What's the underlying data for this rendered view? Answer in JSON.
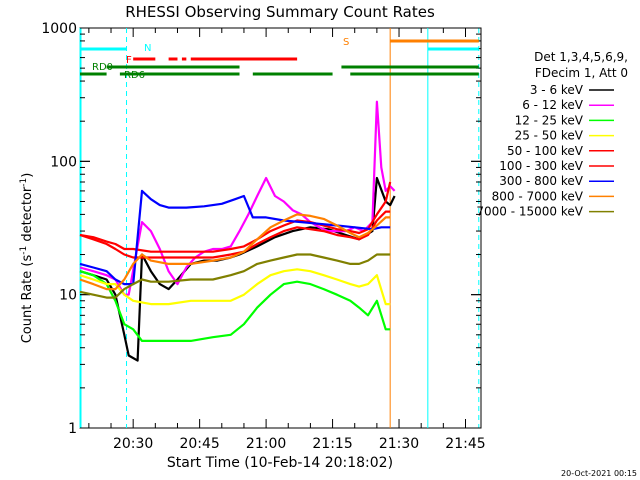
{
  "chart_data": {
    "type": "line",
    "title": "RHESSI Observing Summary Count Rates",
    "xlabel": "Start Time (10-Feb-14 20:18:02)",
    "ylabel": "Count Rate (s",
    "ylabel_sup1": "-1",
    "ylabel_mid": " detector",
    "ylabel_sup2": "-1",
    "ylabel_end": ")",
    "x_units": "minutes after 20:18:02",
    "xlim": [
      0,
      90.5
    ],
    "ylim": [
      1,
      1000
    ],
    "yscale": "log",
    "x_ticks": [
      {
        "x": 12,
        "label": "20:30"
      },
      {
        "x": 27,
        "label": "20:45"
      },
      {
        "x": 42,
        "label": "21:00"
      },
      {
        "x": 57,
        "label": "21:15"
      },
      {
        "x": 72,
        "label": "21:30"
      },
      {
        "x": 87,
        "label": "21:45"
      }
    ],
    "y_ticks": [
      {
        "y": 1,
        "label": "1"
      },
      {
        "y": 10,
        "label": "10"
      },
      {
        "y": 100,
        "label": "100"
      },
      {
        "y": 1000,
        "label": "1000"
      }
    ],
    "legend": {
      "placement": "right",
      "header": [
        "Det 1,3,4,5,6,9,",
        "FDecim 1, Att 0"
      ]
    },
    "series": [
      {
        "name": "3 - 6 keV",
        "color": "#000000",
        "points": [
          [
            0,
            15
          ],
          [
            3,
            14
          ],
          [
            6,
            13
          ],
          [
            8,
            10
          ],
          [
            10,
            5
          ],
          [
            11,
            3.5
          ],
          [
            13,
            3.2
          ],
          [
            14,
            20
          ],
          [
            16,
            15
          ],
          [
            18,
            12
          ],
          [
            20,
            11
          ],
          [
            22,
            13
          ],
          [
            25,
            17
          ],
          [
            28,
            18
          ],
          [
            31,
            18
          ],
          [
            34,
            19
          ],
          [
            36,
            20
          ],
          [
            40,
            23
          ],
          [
            44,
            27
          ],
          [
            48,
            30
          ],
          [
            52,
            32
          ],
          [
            56,
            31
          ],
          [
            60,
            28
          ],
          [
            63,
            26
          ],
          [
            66,
            30
          ],
          [
            67,
            75
          ],
          [
            69,
            50
          ],
          [
            70,
            47
          ],
          [
            71,
            55
          ]
        ]
      },
      {
        "name": "6 - 12 keV",
        "color": "#ff00ff",
        "points": [
          [
            0,
            16
          ],
          [
            3,
            15
          ],
          [
            6,
            14
          ],
          [
            8,
            13
          ],
          [
            10,
            10
          ],
          [
            11,
            10
          ],
          [
            14,
            35
          ],
          [
            16,
            30
          ],
          [
            18,
            22
          ],
          [
            20,
            15
          ],
          [
            22,
            12
          ],
          [
            24,
            16
          ],
          [
            26,
            19
          ],
          [
            28,
            21
          ],
          [
            30,
            22
          ],
          [
            32,
            22
          ],
          [
            34,
            23
          ],
          [
            36,
            30
          ],
          [
            38,
            40
          ],
          [
            40,
            55
          ],
          [
            42,
            75
          ],
          [
            44,
            55
          ],
          [
            46,
            50
          ],
          [
            48,
            43
          ],
          [
            50,
            40
          ],
          [
            52,
            35
          ],
          [
            54,
            32
          ],
          [
            56,
            30
          ],
          [
            58,
            30
          ],
          [
            60,
            30
          ],
          [
            62,
            32
          ],
          [
            64,
            30
          ],
          [
            66,
            35
          ],
          [
            67,
            280
          ],
          [
            68,
            90
          ],
          [
            69,
            60
          ],
          [
            70,
            65
          ],
          [
            71,
            60
          ]
        ]
      },
      {
        "name": "12 - 25 keV",
        "color": "#00ff00",
        "points": [
          [
            0,
            15
          ],
          [
            3,
            14
          ],
          [
            6,
            12
          ],
          [
            8,
            9
          ],
          [
            10,
            6
          ],
          [
            12,
            5.5
          ],
          [
            14,
            4.5
          ],
          [
            16,
            4.5
          ],
          [
            20,
            4.5
          ],
          [
            25,
            4.5
          ],
          [
            30,
            4.8
          ],
          [
            34,
            5
          ],
          [
            37,
            6
          ],
          [
            40,
            8
          ],
          [
            43,
            10
          ],
          [
            46,
            12
          ],
          [
            49,
            12.5
          ],
          [
            52,
            12
          ],
          [
            55,
            11
          ],
          [
            58,
            10
          ],
          [
            61,
            9
          ],
          [
            63,
            8
          ],
          [
            65,
            7
          ],
          [
            67,
            9
          ],
          [
            69,
            5.5
          ],
          [
            70,
            5.5
          ]
        ]
      },
      {
        "name": "25 - 50 keV",
        "color": "#ffff00",
        "points": [
          [
            0,
            14
          ],
          [
            3,
            13
          ],
          [
            6,
            12
          ],
          [
            8,
            12
          ],
          [
            10,
            10
          ],
          [
            12,
            9
          ],
          [
            16,
            8.5
          ],
          [
            20,
            8.5
          ],
          [
            25,
            9
          ],
          [
            30,
            9
          ],
          [
            34,
            9
          ],
          [
            37,
            10
          ],
          [
            40,
            12
          ],
          [
            43,
            14
          ],
          [
            46,
            15
          ],
          [
            49,
            15.5
          ],
          [
            52,
            15
          ],
          [
            55,
            14
          ],
          [
            58,
            13
          ],
          [
            61,
            12
          ],
          [
            63,
            11.5
          ],
          [
            65,
            12
          ],
          [
            67,
            14
          ],
          [
            69,
            8.5
          ],
          [
            70,
            8.5
          ]
        ]
      },
      {
        "name": "50 - 100 keV",
        "color": "#ff0000",
        "points": [
          [
            0,
            28
          ],
          [
            3,
            26
          ],
          [
            6,
            24
          ],
          [
            8,
            22
          ],
          [
            10,
            20
          ],
          [
            12,
            19
          ],
          [
            16,
            19
          ],
          [
            20,
            19
          ],
          [
            25,
            19
          ],
          [
            30,
            19
          ],
          [
            34,
            20
          ],
          [
            37,
            21
          ],
          [
            40,
            24
          ],
          [
            43,
            27
          ],
          [
            46,
            30
          ],
          [
            49,
            32
          ],
          [
            52,
            31
          ],
          [
            55,
            30
          ],
          [
            58,
            28
          ],
          [
            61,
            27
          ],
          [
            63,
            26
          ],
          [
            65,
            28
          ],
          [
            67,
            36
          ],
          [
            69,
            42
          ],
          [
            70,
            42
          ]
        ]
      },
      {
        "name": "100 - 300 keV",
        "color": "#ff0000",
        "points": [
          [
            0,
            28
          ],
          [
            3,
            27
          ],
          [
            6,
            25
          ],
          [
            8,
            24
          ],
          [
            10,
            22
          ],
          [
            12,
            22
          ],
          [
            16,
            21
          ],
          [
            20,
            21
          ],
          [
            25,
            21
          ],
          [
            30,
            21
          ],
          [
            34,
            22
          ],
          [
            37,
            23
          ],
          [
            40,
            26
          ],
          [
            43,
            30
          ],
          [
            46,
            33
          ],
          [
            49,
            36
          ],
          [
            52,
            35
          ],
          [
            55,
            33
          ],
          [
            58,
            31
          ],
          [
            61,
            30
          ],
          [
            63,
            29
          ],
          [
            65,
            31
          ],
          [
            67,
            40
          ],
          [
            69,
            50
          ],
          [
            70,
            70
          ]
        ]
      },
      {
        "name": "300 - 800 keV",
        "color": "#0000ff",
        "points": [
          [
            0,
            17
          ],
          [
            3,
            16
          ],
          [
            6,
            15
          ],
          [
            8,
            13
          ],
          [
            10,
            12
          ],
          [
            12,
            12
          ],
          [
            14,
            60
          ],
          [
            16,
            52
          ],
          [
            18,
            47
          ],
          [
            20,
            45
          ],
          [
            24,
            45
          ],
          [
            28,
            46
          ],
          [
            32,
            48
          ],
          [
            35,
            52
          ],
          [
            37,
            55
          ],
          [
            39,
            38
          ],
          [
            42,
            38
          ],
          [
            46,
            36
          ],
          [
            50,
            35
          ],
          [
            54,
            34
          ],
          [
            58,
            33
          ],
          [
            62,
            32
          ],
          [
            66,
            31
          ],
          [
            68,
            32
          ],
          [
            70,
            32
          ]
        ]
      },
      {
        "name": "800 - 7000 keV",
        "color": "#ff8000",
        "points": [
          [
            0,
            13
          ],
          [
            3,
            12
          ],
          [
            6,
            11
          ],
          [
            8,
            11
          ],
          [
            10,
            13
          ],
          [
            12,
            17
          ],
          [
            14,
            20
          ],
          [
            16,
            18
          ],
          [
            20,
            17
          ],
          [
            25,
            17
          ],
          [
            30,
            18
          ],
          [
            34,
            19
          ],
          [
            37,
            21
          ],
          [
            40,
            26
          ],
          [
            43,
            32
          ],
          [
            46,
            36
          ],
          [
            49,
            40
          ],
          [
            52,
            39
          ],
          [
            55,
            37
          ],
          [
            58,
            33
          ],
          [
            61,
            29
          ],
          [
            63,
            27
          ],
          [
            65,
            29
          ],
          [
            67,
            33
          ],
          [
            69,
            38
          ],
          [
            70,
            38
          ]
        ]
      },
      {
        "name": "7000 - 15000 keV",
        "color": "#808000",
        "points": [
          [
            0,
            10.5
          ],
          [
            3,
            10
          ],
          [
            6,
            9.5
          ],
          [
            8,
            9.5
          ],
          [
            10,
            11
          ],
          [
            12,
            12
          ],
          [
            14,
            13
          ],
          [
            16,
            12.5
          ],
          [
            20,
            12.5
          ],
          [
            25,
            13
          ],
          [
            30,
            13
          ],
          [
            34,
            14
          ],
          [
            37,
            15
          ],
          [
            40,
            17
          ],
          [
            43,
            18
          ],
          [
            46,
            19
          ],
          [
            49,
            20
          ],
          [
            52,
            20
          ],
          [
            55,
            19
          ],
          [
            58,
            18
          ],
          [
            61,
            17
          ],
          [
            63,
            17
          ],
          [
            65,
            18
          ],
          [
            67,
            20
          ],
          [
            69,
            20
          ],
          [
            70,
            20
          ]
        ]
      }
    ],
    "time_bars": [
      {
        "label": "N",
        "color": "#00ffff",
        "ranges": [
          [
            0,
            10.5
          ],
          [
            78.5,
            90
          ]
        ],
        "level": "high"
      },
      {
        "label": "S",
        "color": "#ff8000",
        "ranges": [
          [
            70,
            90
          ]
        ],
        "level": "top"
      },
      {
        "label": "F",
        "color": "#ff0000",
        "ranges": [
          [
            12,
            17
          ],
          [
            20,
            22
          ],
          [
            23,
            24
          ],
          [
            25,
            49
          ]
        ],
        "level": "mid"
      },
      {
        "label": "RD0",
        "color": "#008000",
        "ranges": [
          [
            6,
            36
          ],
          [
            59,
            90
          ]
        ],
        "level": "low"
      },
      {
        "label": "RD6",
        "color": "#008000",
        "ranges": [
          [
            0,
            6
          ],
          [
            9,
            36
          ],
          [
            39,
            57
          ],
          [
            61,
            90
          ]
        ],
        "level": "lower"
      }
    ],
    "vlines": [
      {
        "x": 10.5,
        "color": "#00ffff",
        "style": "dashed"
      },
      {
        "x": 70,
        "color": "#ff8000",
        "style": "solid"
      },
      {
        "x": 78.5,
        "color": "#00ffff",
        "style": "solid"
      },
      {
        "x": 90,
        "color": "#00ffff",
        "style": "dashed"
      }
    ],
    "left_edge_line": {
      "x": 0,
      "color": "#00ffff"
    },
    "footer_timestamp": "20-Oct-2021 00:15"
  }
}
